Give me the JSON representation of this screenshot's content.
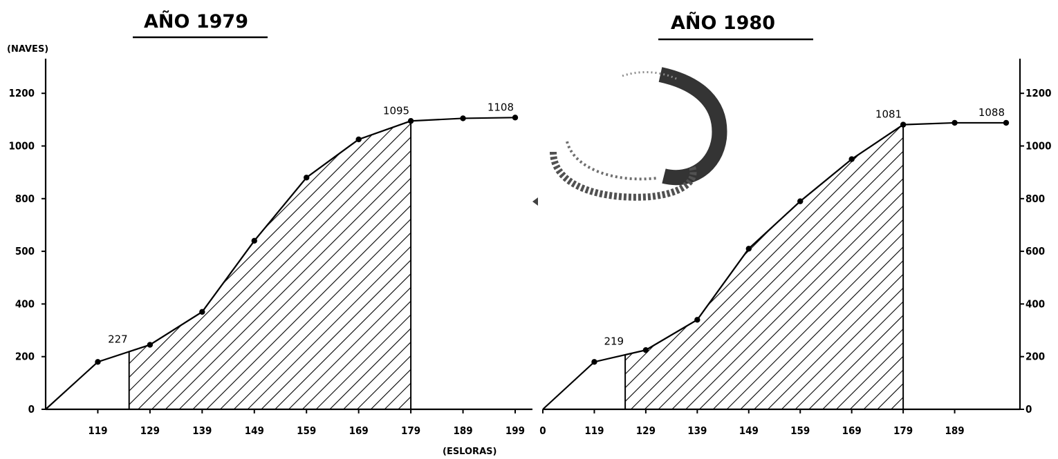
{
  "ylabel": "(NAVES)",
  "xlabel": "(ESLORAS)",
  "chart_data": [
    {
      "type": "line",
      "title": "AÑO 1979",
      "x": [
        109,
        119,
        129,
        139,
        149,
        159,
        169,
        179,
        189,
        199
      ],
      "y": [
        0,
        180,
        245,
        370,
        640,
        880,
        1025,
        1095,
        1105,
        1108
      ],
      "shaded_range": [
        125,
        179
      ],
      "xticks": [
        "119",
        "129",
        "139",
        "149",
        "159",
        "169",
        "179",
        "189",
        "199"
      ],
      "yticks": [
        "0",
        "200",
        "400",
        "500",
        "800",
        "1000",
        "1200"
      ],
      "ylim": [
        0,
        1250
      ],
      "annotations": [
        {
          "text": "227",
          "x": 125,
          "y": 227
        },
        {
          "text": "1095",
          "x": 179,
          "y": 1095
        },
        {
          "text": "1108",
          "x": 199,
          "y": 1108
        }
      ]
    },
    {
      "type": "line",
      "title": "AÑO 1980",
      "x": [
        109,
        119,
        129,
        139,
        149,
        159,
        169,
        179,
        189,
        199
      ],
      "y": [
        0,
        180,
        225,
        340,
        610,
        790,
        950,
        1081,
        1088,
        1088
      ],
      "shaded_range": [
        125,
        179
      ],
      "xticks": [
        "0",
        "119",
        "129",
        "139",
        "149",
        "159",
        "169",
        "179",
        "189"
      ],
      "yticks": [
        "0",
        "200",
        "400",
        "600",
        "800",
        "1000",
        "1200"
      ],
      "ylim": [
        0,
        1250
      ],
      "annotations": [
        {
          "text": "219",
          "x": 125,
          "y": 219
        },
        {
          "text": "1081",
          "x": 179,
          "y": 1081
        },
        {
          "text": "1088",
          "x": 199,
          "y": 1088
        }
      ]
    }
  ]
}
